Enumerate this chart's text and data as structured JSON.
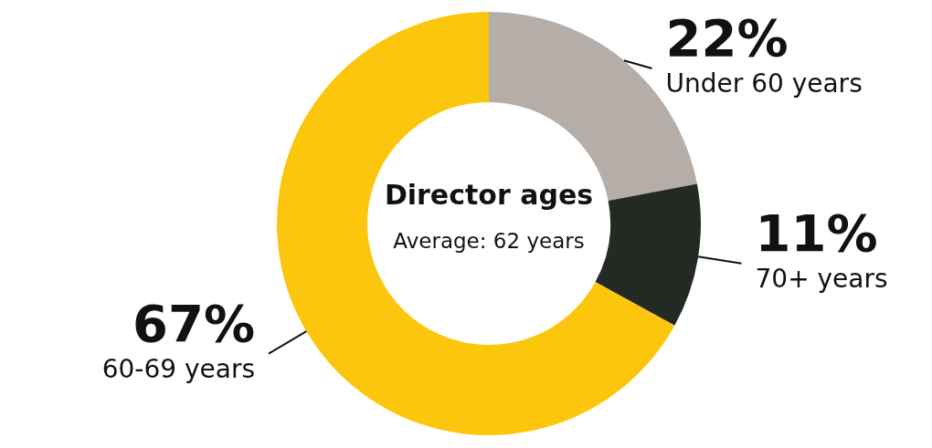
{
  "chart_data": {
    "type": "donut",
    "title": "Director ages",
    "subtitle": "Average: 62 years",
    "categories": [
      "Under 60 years",
      "70+ years",
      "60-69 years"
    ],
    "values": [
      22,
      11,
      67
    ],
    "value_labels": [
      "22%",
      "11%",
      "67%"
    ],
    "colors": [
      "#b5ada7",
      "#232a23",
      "#fcc60d"
    ]
  }
}
